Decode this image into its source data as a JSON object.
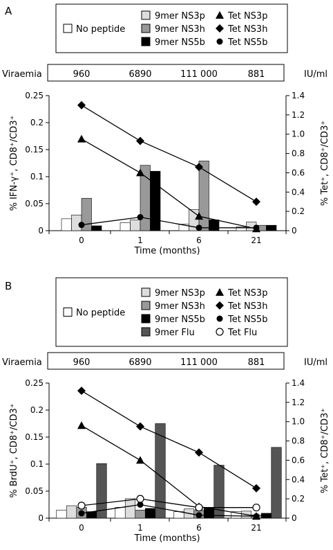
{
  "chart_data": [
    {
      "panel": "A",
      "type": "bar",
      "categories": [
        "0",
        "1",
        "6",
        "21"
      ],
      "xlabel": "Time (months)",
      "ylabel": "% IFN-γ⁺, CD8⁺/CD3⁺",
      "ylabel_right": "% Tet⁺, CD8⁺/CD3⁺",
      "ylim": [
        0,
        0.25
      ],
      "yticks": [
        "0",
        "0.05",
        "0.1",
        "0.15",
        "0.2",
        "0.25"
      ],
      "ylim_right": [
        0,
        1.4
      ],
      "yticks_right": [
        "0",
        "0.2",
        "0.4",
        "0.6",
        "0.8",
        "1.0",
        "1.2",
        "1.4"
      ],
      "viraemia": {
        "label": "Viraemia",
        "values": [
          "960",
          "6890",
          "111 000",
          "881"
        ],
        "unit": "IU/ml"
      },
      "bar_series": [
        {
          "name": "No peptide",
          "color": "#ffffff",
          "values": [
            0.022,
            0.015,
            0.012,
            0.007
          ]
        },
        {
          "name": "9mer NS3p",
          "color": "#dddddd",
          "values": [
            0.029,
            0.02,
            0.039,
            0.016
          ]
        },
        {
          "name": "9mer NS3h",
          "color": "#999999",
          "values": [
            0.06,
            0.121,
            0.129,
            0.01
          ]
        },
        {
          "name": "9mer NS5b",
          "color": "#000000",
          "values": [
            0.009,
            0.11,
            0.02,
            0.01
          ]
        }
      ],
      "line_series": [
        {
          "name": "Tet NS3p",
          "marker": "triangle",
          "values": [
            0.95,
            0.6,
            0.15,
            0.02
          ]
        },
        {
          "name": "Tet NS3h",
          "marker": "diamond",
          "values": [
            1.3,
            0.93,
            0.66,
            0.3
          ]
        },
        {
          "name": "Tet NS5b",
          "marker": "circle",
          "values": [
            0.06,
            0.14,
            0.03,
            0.03
          ]
        }
      ],
      "legend": {
        "left": [
          "No peptide"
        ],
        "middle": [
          "9mer NS3p",
          "9mer NS3h",
          "9mer NS5b"
        ],
        "right": [
          "Tet NS3p",
          "Tet NS3h",
          "Tet NS5b"
        ]
      }
    },
    {
      "panel": "B",
      "type": "bar",
      "categories": [
        "0",
        "1",
        "6",
        "21"
      ],
      "xlabel": "Time (months)",
      "ylabel": "% BrdU⁺, CD8⁺/CD3⁺",
      "ylabel_right": "% Tet⁺, CD8⁺/CD3⁺",
      "ylim": [
        0,
        0.25
      ],
      "yticks": [
        "0",
        "0.05",
        "0.1",
        "0.15",
        "0.2",
        "0.25"
      ],
      "ylim_right": [
        0,
        1.4
      ],
      "yticks_right": [
        "0",
        "0.2",
        "0.4",
        "0.6",
        "0.8",
        "1.0",
        "1.2",
        "1.4"
      ],
      "viraemia": {
        "label": "Viraemia",
        "values": [
          "960",
          "6890",
          "111 000",
          "881"
        ],
        "unit": "IU/ml"
      },
      "bar_series": [
        {
          "name": "No peptide",
          "color": "#ffffff",
          "values": [
            0.015,
            0.02,
            0.012,
            0.012
          ]
        },
        {
          "name": "9mer NS3p",
          "color": "#dddddd",
          "values": [
            0.023,
            0.036,
            0.017,
            0.013
          ]
        },
        {
          "name": "9mer NS3h",
          "color": "#999999",
          "values": [
            0.02,
            0.015,
            0.014,
            0.006
          ]
        },
        {
          "name": "9mer NS5b",
          "color": "#000000",
          "values": [
            0.012,
            0.018,
            0.02,
            0.009
          ]
        },
        {
          "name": "9mer Flu",
          "color": "#555555",
          "values": [
            0.101,
            0.175,
            0.098,
            0.131
          ]
        }
      ],
      "line_series": [
        {
          "name": "Tet NS3p",
          "marker": "triangle",
          "values": [
            0.96,
            0.6,
            0.12,
            0.02
          ]
        },
        {
          "name": "Tet NS3h",
          "marker": "diamond",
          "values": [
            1.32,
            0.95,
            0.68,
            0.31
          ]
        },
        {
          "name": "Tet NS5b",
          "marker": "circle",
          "values": [
            0.05,
            0.14,
            0.03,
            0.02
          ]
        },
        {
          "name": "Tet Flu",
          "marker": "circle-open",
          "values": [
            0.13,
            0.2,
            0.11,
            0.11
          ]
        }
      ],
      "legend": {
        "left": [
          "No peptide"
        ],
        "middle": [
          "9mer NS3p",
          "9mer NS3h",
          "9mer NS5b",
          "9mer Flu"
        ],
        "right": [
          "Tet NS3p",
          "Tet NS3h",
          "Tet NS5b",
          "Tet Flu"
        ]
      }
    }
  ]
}
